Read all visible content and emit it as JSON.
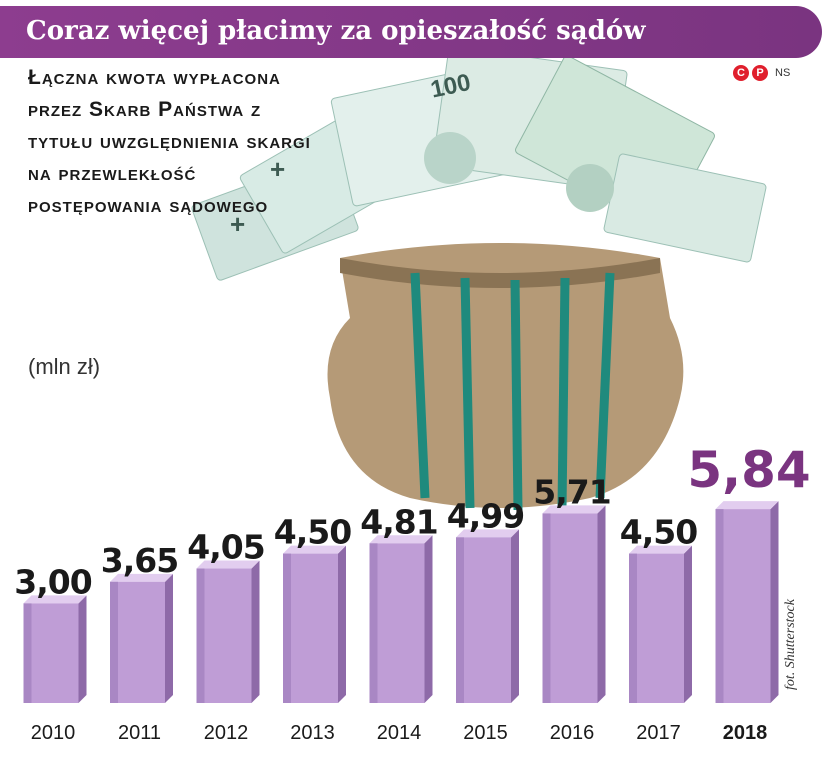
{
  "header": {
    "title": "Coraz więcej płacimy za opieszałość sądów",
    "subtitle": "Łączna kwota wypłacona przez Skarb Państwa z tytułu uwzględnienia skargi na przewlekłość postępowania sądowego",
    "unit": "(mln zł)",
    "copyright_c": "C",
    "copyright_p": "P",
    "copyright_ns": "NS",
    "photo_credit": "fot. Shutterstock"
  },
  "colors": {
    "banner": "#8d3d8f",
    "bar": "#bf9dd6",
    "bar_front_dark": "#a987c4",
    "bar_top": "#e2cdef",
    "bar_side": "#8e6aa8",
    "highlight_label": "#7a3480",
    "text": "#1a1a1a"
  },
  "chart_data": {
    "type": "bar",
    "title": "Coraz więcej płacimy za opieszałość sądów",
    "ylabel": "(mln zł)",
    "categories": [
      "2010",
      "2011",
      "2012",
      "2013",
      "2014",
      "2015",
      "2016",
      "2017",
      "2018"
    ],
    "values": [
      3.0,
      3.65,
      4.05,
      4.5,
      4.81,
      4.99,
      5.71,
      4.5,
      5.84
    ],
    "value_labels": [
      "3,00",
      "3,65",
      "4,05",
      "4,50",
      "4,81",
      "4,99",
      "5,71",
      "4,50",
      "5,84"
    ],
    "highlight_index": 8,
    "ylim": [
      0,
      6
    ],
    "grid": false,
    "legend": "none"
  }
}
